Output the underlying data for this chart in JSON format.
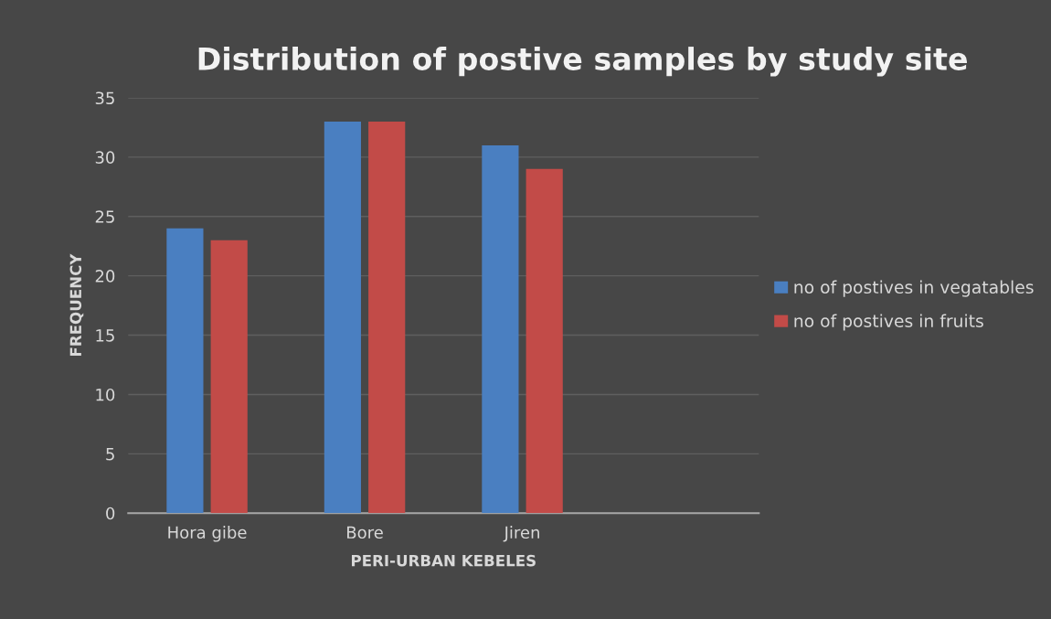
{
  "chart_data": {
    "type": "bar",
    "title": "Distribution of postive samples by study site",
    "xlabel": "PERI-URBAN KEBELES",
    "ylabel": "FREQUENCY",
    "categories": [
      "Hora gibe",
      "Bore",
      "Jiren",
      null
    ],
    "series": [
      {
        "name": "no of postives in vegatables",
        "color": "#4a7fc1",
        "values": [
          24,
          33,
          31,
          null
        ]
      },
      {
        "name": "no of postives in fruits",
        "color": "#c24b48",
        "values": [
          23,
          33,
          29,
          null
        ]
      }
    ],
    "ylim": [
      0,
      35
    ],
    "yticks": [
      0,
      5,
      10,
      15,
      20,
      25,
      30,
      35
    ],
    "grid": "y",
    "legend": "right"
  }
}
